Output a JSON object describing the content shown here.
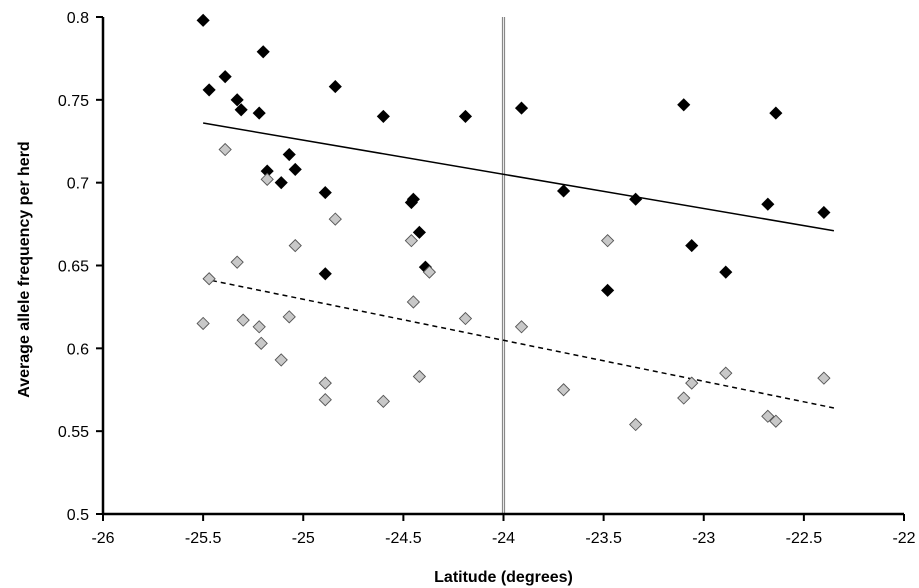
{
  "chart_data": {
    "type": "scatter",
    "title": "",
    "xlabel": "Latitude (degrees)",
    "ylabel": "Average allele frequency per herd",
    "xlim": [
      -26,
      -22
    ],
    "ylim": [
      0.5,
      0.8
    ],
    "x_ticks": [
      -26,
      -25.5,
      -25,
      -24.5,
      -24,
      -23.5,
      -23,
      -22.5,
      -22
    ],
    "y_ticks": [
      0.5,
      0.55,
      0.6,
      0.65,
      0.7,
      0.75,
      0.8
    ],
    "x_tick_labels": [
      "-26",
      "-25.5",
      "-25",
      "-24.5",
      "-24",
      "-23.5",
      "-23",
      "-22.5",
      "-22"
    ],
    "y_tick_labels": [
      "0.5",
      "0.55",
      "0.6",
      "0.65",
      "0.7",
      "0.75",
      "0.8"
    ],
    "grid": false,
    "legend": "none",
    "vertical_reference_line": {
      "x": -24,
      "color": "#888888"
    },
    "series": [
      {
        "marker": "diamond",
        "fill": "#000000",
        "points": [
          [
            -25.5,
            0.798
          ],
          [
            -25.47,
            0.756
          ],
          [
            -25.39,
            0.764
          ],
          [
            -25.33,
            0.75
          ],
          [
            -25.31,
            0.744
          ],
          [
            -25.22,
            0.742
          ],
          [
            -25.2,
            0.779
          ],
          [
            -25.18,
            0.707
          ],
          [
            -25.11,
            0.7
          ],
          [
            -25.07,
            0.717
          ],
          [
            -25.04,
            0.708
          ],
          [
            -24.89,
            0.694
          ],
          [
            -24.89,
            0.645
          ],
          [
            -24.84,
            0.758
          ],
          [
            -24.6,
            0.74
          ],
          [
            -24.46,
            0.688
          ],
          [
            -24.45,
            0.69
          ],
          [
            -24.42,
            0.67
          ],
          [
            -24.39,
            0.649
          ],
          [
            -24.19,
            0.74
          ],
          [
            -23.91,
            0.745
          ],
          [
            -23.7,
            0.695
          ],
          [
            -23.48,
            0.635
          ],
          [
            -23.34,
            0.69
          ],
          [
            -23.1,
            0.747
          ],
          [
            -23.06,
            0.662
          ],
          [
            -22.89,
            0.646
          ],
          [
            -22.68,
            0.687
          ],
          [
            -22.64,
            0.742
          ],
          [
            -22.4,
            0.682
          ]
        ],
        "trendline": {
          "style": "solid",
          "x": [
            -25.5,
            -22.35
          ],
          "y": [
            0.736,
            0.671
          ]
        }
      },
      {
        "marker": "diamond",
        "fill": "#c8c8c8",
        "points": [
          [
            -25.5,
            0.615
          ],
          [
            -25.47,
            0.642
          ],
          [
            -25.39,
            0.72
          ],
          [
            -25.33,
            0.652
          ],
          [
            -25.3,
            0.617
          ],
          [
            -25.22,
            0.613
          ],
          [
            -25.21,
            0.603
          ],
          [
            -25.18,
            0.702
          ],
          [
            -25.11,
            0.593
          ],
          [
            -25.07,
            0.619
          ],
          [
            -25.04,
            0.662
          ],
          [
            -24.89,
            0.579
          ],
          [
            -24.89,
            0.569
          ],
          [
            -24.84,
            0.678
          ],
          [
            -24.6,
            0.568
          ],
          [
            -24.46,
            0.665
          ],
          [
            -24.45,
            0.628
          ],
          [
            -24.42,
            0.583
          ],
          [
            -24.37,
            0.646
          ],
          [
            -24.19,
            0.618
          ],
          [
            -23.91,
            0.613
          ],
          [
            -23.7,
            0.575
          ],
          [
            -23.48,
            0.665
          ],
          [
            -23.34,
            0.554
          ],
          [
            -23.1,
            0.57
          ],
          [
            -23.06,
            0.579
          ],
          [
            -22.89,
            0.585
          ],
          [
            -22.68,
            0.559
          ],
          [
            -22.64,
            0.556
          ],
          [
            -22.4,
            0.582
          ]
        ],
        "trendline": {
          "style": "dashed",
          "x": [
            -25.5,
            -22.35
          ],
          "y": [
            0.642,
            0.564
          ]
        }
      }
    ]
  }
}
